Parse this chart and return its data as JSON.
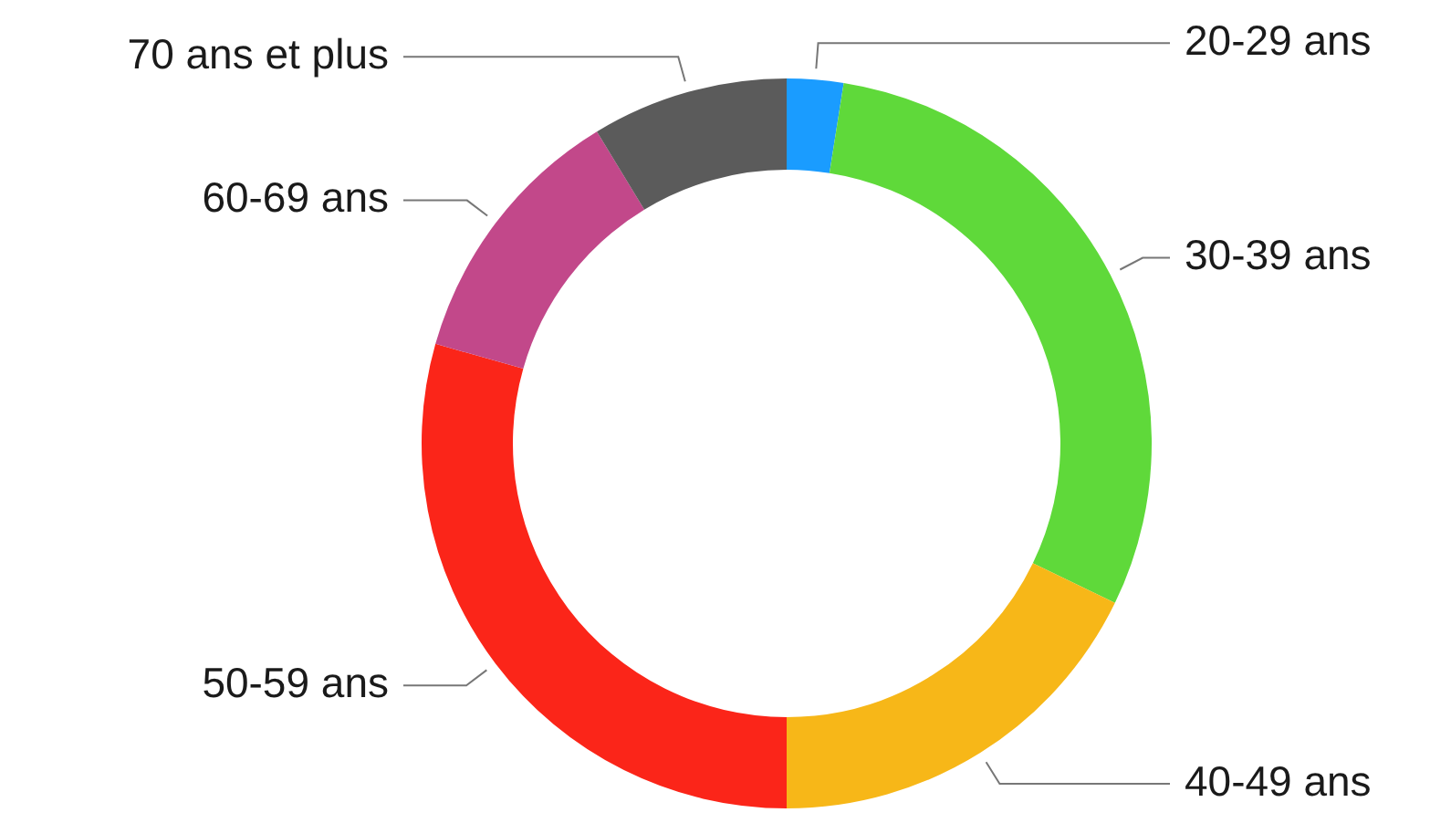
{
  "chart_data": {
    "type": "donut",
    "categories": [
      "20-29 ans",
      "30-39 ans",
      "40-49 ans",
      "50-59 ans",
      "60-69 ans",
      "70 ans et plus"
    ],
    "values": [
      2.5,
      29.7,
      17.8,
      29.4,
      11.9,
      8.7
    ],
    "colors": [
      "#1a9cff",
      "#5fd93a",
      "#f7b718",
      "#fb2519",
      "#c2488a",
      "#5b5b5b"
    ],
    "legend": false
  }
}
